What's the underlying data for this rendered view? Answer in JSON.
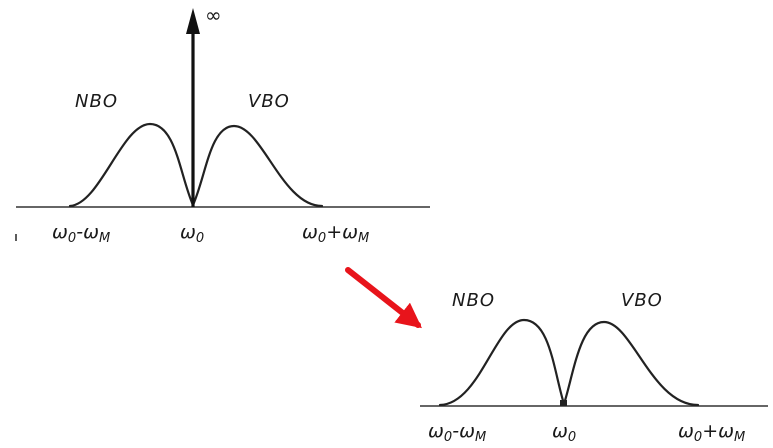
{
  "spectrum_top": {
    "carrier_symbol": "∞",
    "lower_band": "NBO",
    "upper_band": "VBO",
    "ticks": [
      {
        "base": "ω",
        "sub": "0",
        "op": "-",
        "base2": "ω",
        "sub2": "M"
      },
      {
        "base": "ω",
        "sub": "0"
      },
      {
        "base": "ω",
        "sub": "0",
        "op": "+",
        "base2": "ω",
        "sub2": "M"
      }
    ]
  },
  "spectrum_bottom": {
    "lower_band": "NBO",
    "upper_band": "VBO",
    "ticks": [
      {
        "base": "ω",
        "sub": "0",
        "op": "-",
        "base2": "ω",
        "sub2": "M"
      },
      {
        "base": "ω",
        "sub": "0"
      },
      {
        "base": "ω",
        "sub": "0",
        "op": "+",
        "base2": "ω",
        "sub2": "M"
      }
    ]
  },
  "colors": {
    "ink": "#222222",
    "transition_arrow": "#e8141b"
  }
}
